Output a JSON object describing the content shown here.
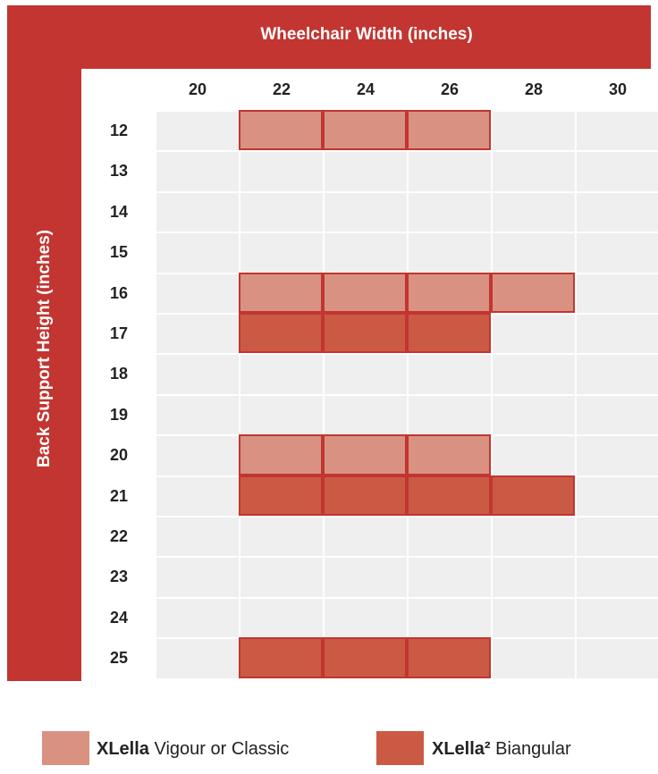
{
  "chart_data": {
    "type": "heatmap",
    "title": "Wheelchair Width (inches)",
    "xlabel": "Wheelchair Width (inches)",
    "ylabel": "Back Support  Height (inches)",
    "x_categories": [
      "20",
      "22",
      "24",
      "26",
      "28",
      "30"
    ],
    "y_categories": [
      "12",
      "13",
      "14",
      "15",
      "16",
      "17",
      "18",
      "19",
      "20",
      "21",
      "22",
      "23",
      "24",
      "25"
    ],
    "series": [
      {
        "name": "XLella Vigour or Classic",
        "color": "#d99282",
        "cells": [
          {
            "height": "12",
            "widths": [
              "22",
              "24",
              "26"
            ]
          },
          {
            "height": "16",
            "widths": [
              "22",
              "24",
              "26",
              "28"
            ]
          },
          {
            "height": "20",
            "widths": [
              "22",
              "24",
              "26"
            ]
          }
        ]
      },
      {
        "name": "XLella² Biangular",
        "color": "#cb5a45",
        "cells": [
          {
            "height": "17",
            "widths": [
              "22",
              "24",
              "26"
            ]
          },
          {
            "height": "21",
            "widths": [
              "22",
              "24",
              "26",
              "28"
            ]
          },
          {
            "height": "25",
            "widths": [
              "22",
              "24",
              "26"
            ]
          }
        ]
      }
    ],
    "empty_color": "#efefef",
    "frame_color": "#c23531"
  },
  "legend": [
    {
      "bold": "XLella",
      "rest": " Vigour or Classic",
      "color": "#d99282"
    },
    {
      "bold": "XLella²",
      "rest": " Biangular",
      "color": "#cb5a45"
    }
  ]
}
